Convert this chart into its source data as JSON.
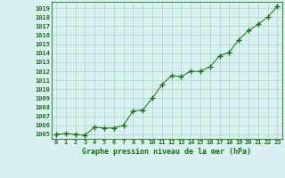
{
  "x": [
    0,
    1,
    2,
    3,
    4,
    5,
    6,
    7,
    8,
    9,
    10,
    11,
    12,
    13,
    14,
    15,
    16,
    17,
    18,
    19,
    20,
    21,
    22,
    23
  ],
  "y": [
    1005.0,
    1005.1,
    1005.0,
    1004.9,
    1005.8,
    1005.7,
    1005.7,
    1006.0,
    1007.6,
    1007.7,
    1009.0,
    1010.5,
    1011.5,
    1011.4,
    1012.0,
    1012.0,
    1012.5,
    1013.7,
    1014.1,
    1015.5,
    1016.5,
    1017.2,
    1018.0,
    1019.2
  ],
  "line_color": "#1a6e1a",
  "marker_color": "#1a6e1a",
  "bg_color": "#d8f0f0",
  "grid_color": "#a8d8c8",
  "xlabel": "Graphe pression niveau de la mer (hPa)",
  "xlabel_color": "#1a6e1a",
  "tick_color": "#1a6e1a",
  "ylim": [
    1004.5,
    1019.7
  ],
  "xlim": [
    -0.5,
    23.5
  ],
  "yticks": [
    1005,
    1006,
    1007,
    1008,
    1009,
    1010,
    1011,
    1012,
    1013,
    1014,
    1015,
    1016,
    1017,
    1018,
    1019
  ],
  "xticks": [
    0,
    1,
    2,
    3,
    4,
    5,
    6,
    7,
    8,
    9,
    10,
    11,
    12,
    13,
    14,
    15,
    16,
    17,
    18,
    19,
    20,
    21,
    22,
    23
  ],
  "xtick_labels": [
    "0",
    "1",
    "2",
    "3",
    "4",
    "5",
    "6",
    "7",
    "8",
    "9",
    "10",
    "11",
    "12",
    "13",
    "14",
    "15",
    "16",
    "17",
    "18",
    "19",
    "20",
    "21",
    "22",
    "23"
  ]
}
